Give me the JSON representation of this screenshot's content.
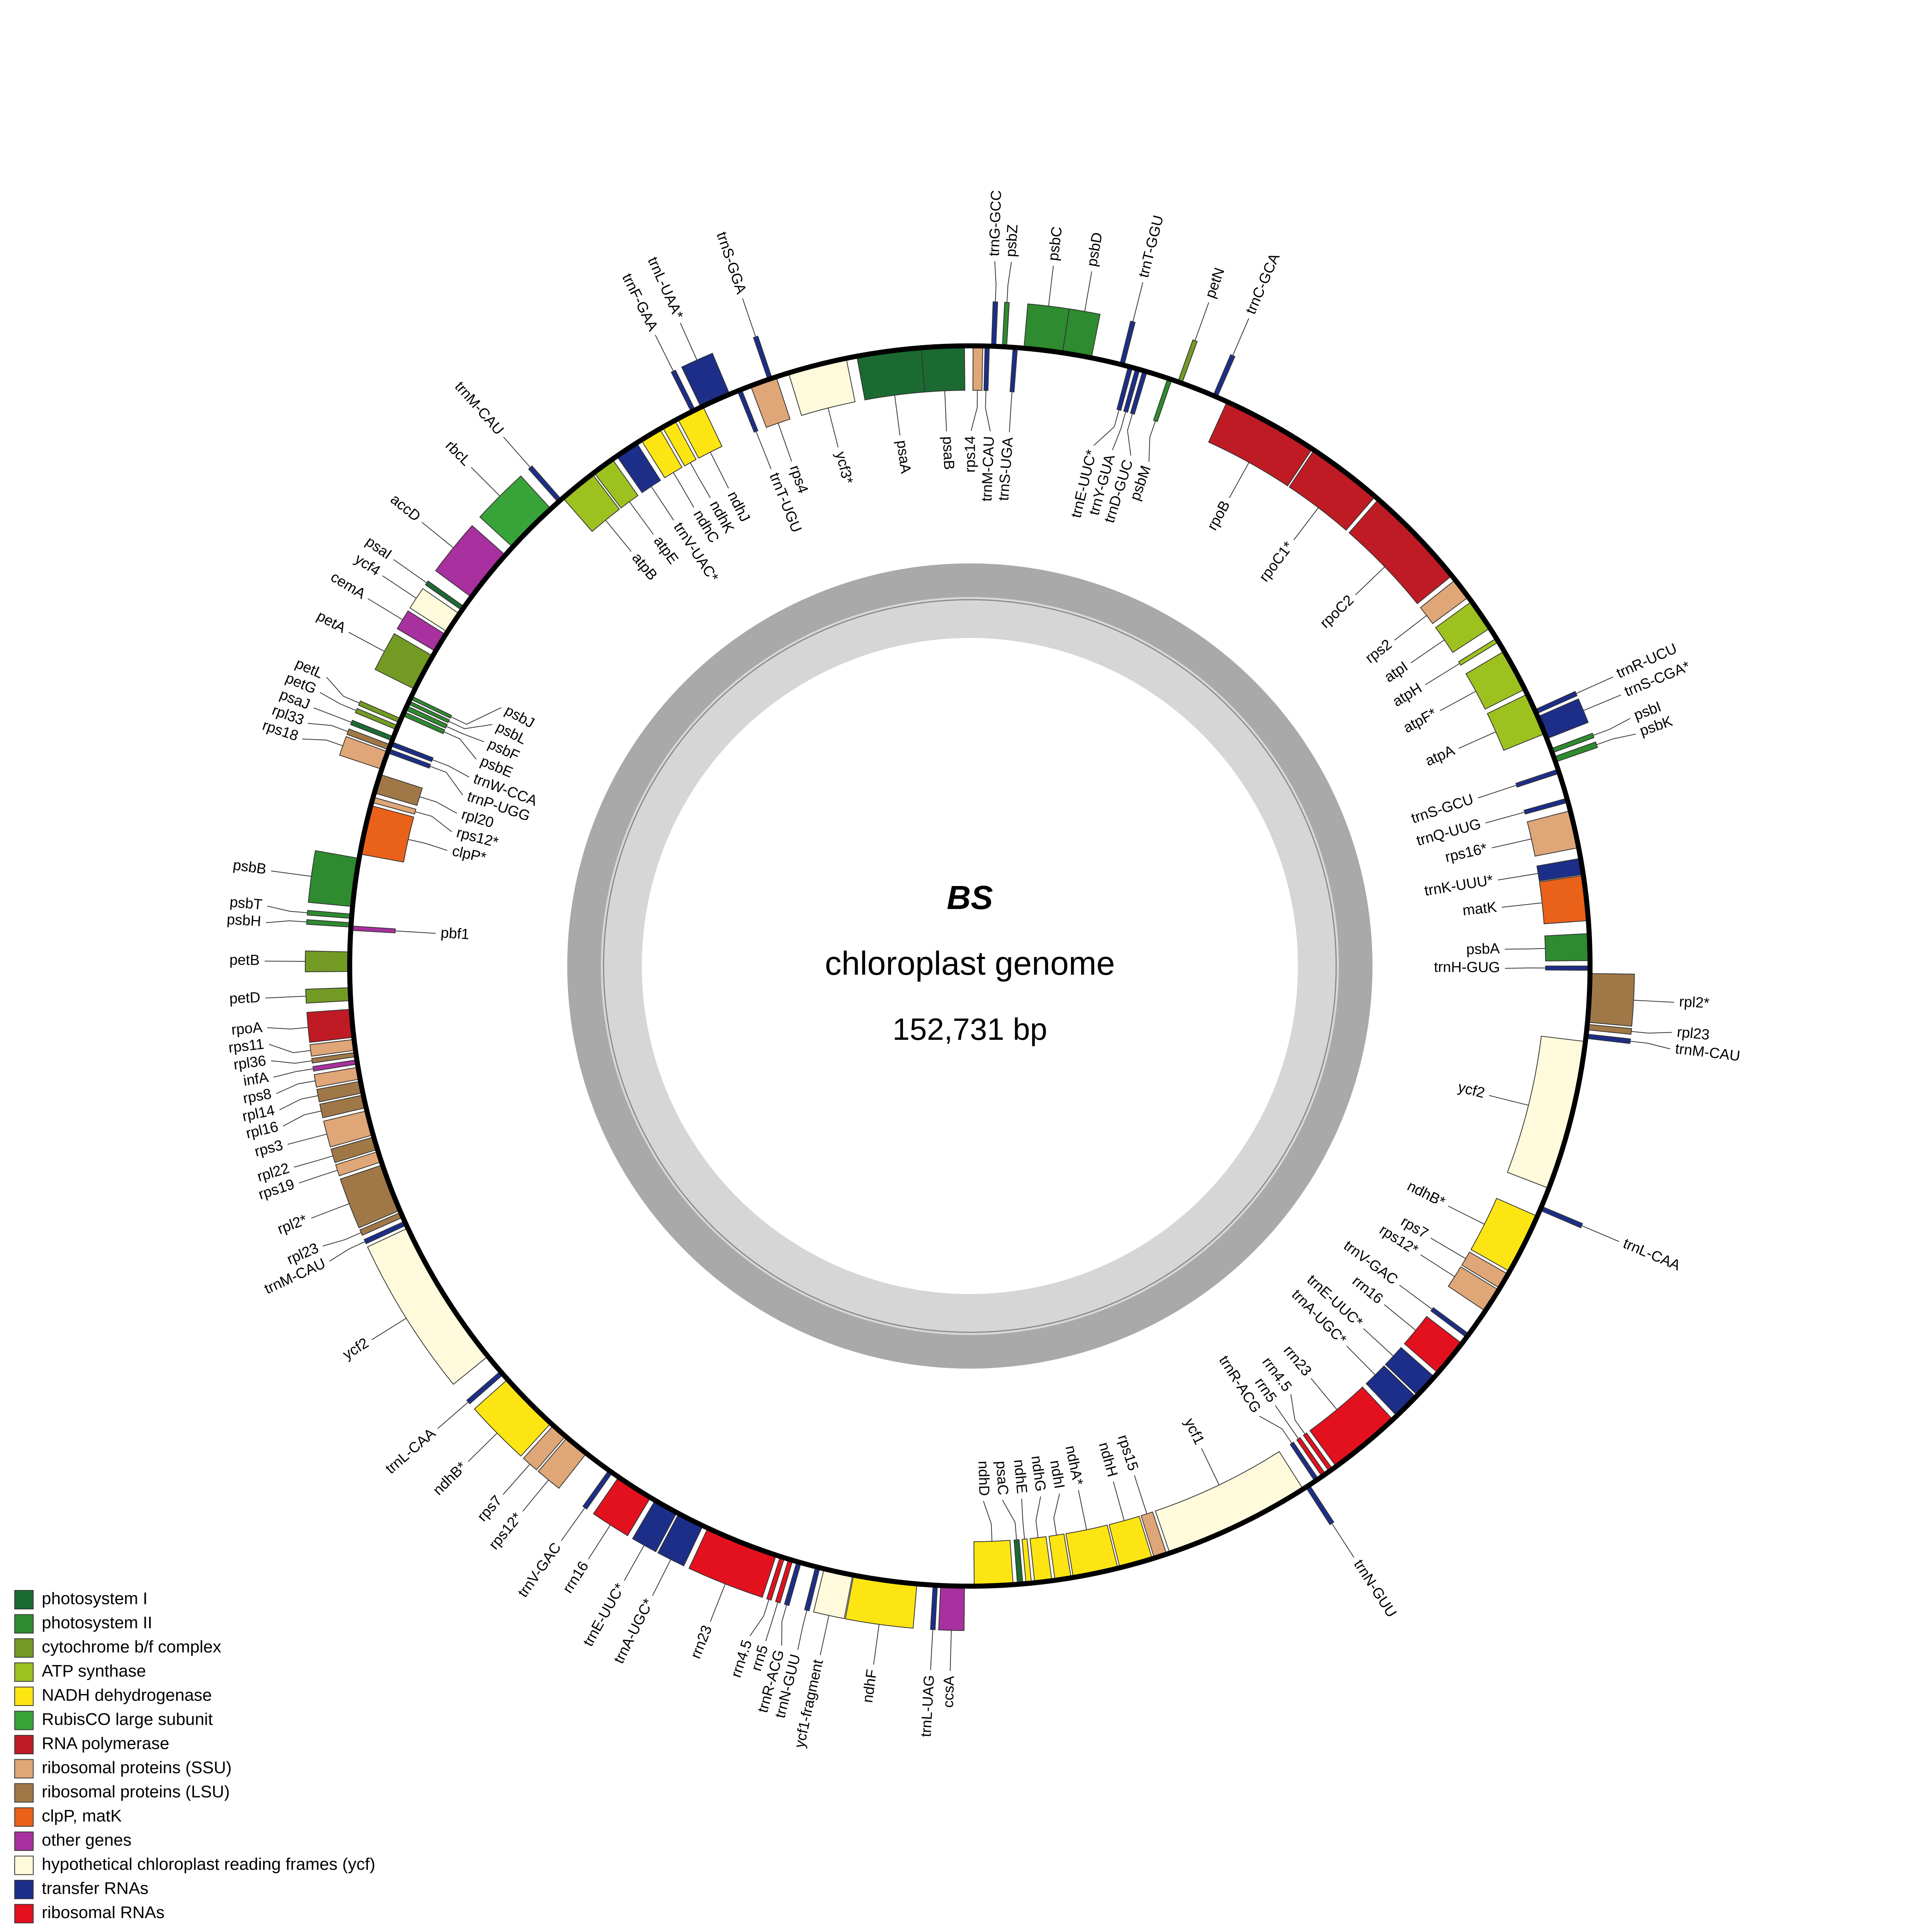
{
  "title": "BS",
  "subtitle": "chloroplast genome",
  "size": {
    "value": 152731,
    "label": "152,731 bp"
  },
  "legend": [
    {
      "label": "photosystem I",
      "color": "#1b6a32"
    },
    {
      "label": "photosystem II",
      "color": "#2e8b2f"
    },
    {
      "label": "cytochrome b/f complex",
      "color": "#739b24"
    },
    {
      "label": "ATP synthase",
      "color": "#9dc11f"
    },
    {
      "label": "NADH dehydrogenase",
      "color": "#fde513"
    },
    {
      "label": "RubisCO large subunit",
      "color": "#38a339"
    },
    {
      "label": "RNA polymerase",
      "color": "#bf1b24"
    },
    {
      "label": "ribosomal proteins (SSU)",
      "color": "#dfa677"
    },
    {
      "label": "ribosomal proteins (LSU)",
      "color": "#a07848"
    },
    {
      "label": "clpP, matK",
      "color": "#ea6119"
    },
    {
      "label": "other genes",
      "color": "#a8309f"
    },
    {
      "label": "hypothetical chloroplast reading frames (ycf)",
      "color": "#fefadb"
    },
    {
      "label": "transfer RNAs",
      "color": "#1c2e88"
    },
    {
      "label": "ribosomal RNAs",
      "color": "#e3101e"
    }
  ],
  "genes": [
    {
      "label": "rps14",
      "start": 127,
      "end": 509,
      "strand": "+",
      "color": "#dfa677"
    },
    {
      "label": "trnM-CAU",
      "start": 594,
      "end": 764,
      "strand": "+",
      "color": "#1c2e88"
    },
    {
      "label": "trnG-GCC",
      "start": 849,
      "end": 1018,
      "strand": "-",
      "color": "#1c2e88"
    },
    {
      "label": "psbZ",
      "start": 1273,
      "end": 1442,
      "strand": "-",
      "color": "#2e8b2f"
    },
    {
      "label": "trnS-UGA",
      "start": 1697,
      "end": 1867,
      "strand": "+",
      "color": "#1c2e88"
    },
    {
      "label": "psbC",
      "start": 2121,
      "end": 3649,
      "strand": "-",
      "color": "#2e8b2f"
    },
    {
      "label": "psbD",
      "start": 3649,
      "end": 4794,
      "strand": "-",
      "color": "#2e8b2f"
    },
    {
      "label": "trnT-GGU",
      "start": 5940,
      "end": 6109,
      "strand": "-",
      "color": "#1c2e88"
    },
    {
      "label": "trnE-UUC*",
      "start": 6279,
      "end": 6449,
      "strand": "+",
      "color": "#1c2e88"
    },
    {
      "label": "trnY-GUA",
      "start": 6576,
      "end": 6746,
      "strand": "+",
      "color": "#1c2e88"
    },
    {
      "label": "trnD-GUC",
      "start": 6873,
      "end": 7043,
      "strand": "+",
      "color": "#1c2e88"
    },
    {
      "label": "psbM",
      "start": 7891,
      "end": 8061,
      "strand": "+",
      "color": "#2e8b2f"
    },
    {
      "label": "petN",
      "start": 8315,
      "end": 8485,
      "strand": "-",
      "color": "#739b24"
    },
    {
      "label": "trnC-GCA",
      "start": 9800,
      "end": 9970,
      "strand": "-",
      "color": "#1c2e88"
    },
    {
      "label": "rpoB",
      "start": 10394,
      "end": 14212,
      "strand": "+",
      "color": "#bf1b24"
    },
    {
      "label": "rpoC1*",
      "start": 14297,
      "end": 17310,
      "strand": "+",
      "color": "#bf1b24"
    },
    {
      "label": "rpoC2",
      "start": 17479,
      "end": 21637,
      "strand": "+",
      "color": "#bf1b24"
    },
    {
      "label": "rps2",
      "start": 21849,
      "end": 22697,
      "strand": "+",
      "color": "#dfa677"
    },
    {
      "label": "atpI",
      "start": 22910,
      "end": 24182,
      "strand": "+",
      "color": "#9dc11f"
    },
    {
      "label": "atpH",
      "start": 24649,
      "end": 24819,
      "strand": "+",
      "color": "#9dc11f"
    },
    {
      "label": "atpF*",
      "start": 25243,
      "end": 26940,
      "strand": "+",
      "color": "#9dc11f"
    },
    {
      "label": "atpA",
      "start": 27152,
      "end": 28849,
      "strand": "+",
      "color": "#9dc11f"
    },
    {
      "label": "trnR-UCU",
      "start": 27831,
      "end": 28001,
      "strand": "-",
      "color": "#1c2e88"
    },
    {
      "label": "trnS-CGA*",
      "start": 28128,
      "end": 29061,
      "strand": "-",
      "color": "#1c2e88"
    },
    {
      "label": "psbI",
      "start": 29485,
      "end": 29655,
      "strand": "-",
      "color": "#2e8b2f"
    },
    {
      "label": "psbK",
      "start": 29825,
      "end": 30037,
      "strand": "-",
      "color": "#2e8b2f"
    },
    {
      "label": "trnS-GCU",
      "start": 30334,
      "end": 30504,
      "strand": "+",
      "color": "#1c2e88"
    },
    {
      "label": "trnQ-UUG",
      "start": 31522,
      "end": 31692,
      "strand": "+",
      "color": "#1c2e88"
    },
    {
      "label": "rps16*",
      "start": 32031,
      "end": 33516,
      "strand": "+",
      "color": "#dfa677"
    },
    {
      "label": "trnK-UUU*",
      "start": 33940,
      "end": 34576,
      "strand": "+",
      "color": "#1c2e88"
    },
    {
      "label": "matK",
      "start": 34619,
      "end": 36401,
      "strand": "+",
      "color": "#ea6119"
    },
    {
      "label": "psbA",
      "start": 36910,
      "end": 37970,
      "strand": "+",
      "color": "#2e8b2f"
    },
    {
      "label": "trnH-GUG",
      "start": 38183,
      "end": 38352,
      "strand": "+",
      "color": "#1c2e88"
    },
    {
      "label": "rpl2*",
      "start": 38479,
      "end": 40389,
      "strand": "-",
      "color": "#a07848"
    },
    {
      "label": "rpl23",
      "start": 40474,
      "end": 40686,
      "strand": "-",
      "color": "#a07848"
    },
    {
      "label": "trnM-CAU",
      "start": 40855,
      "end": 41025,
      "strand": "-",
      "color": "#1c2e88"
    },
    {
      "label": "ycf2",
      "start": 41152,
      "end": 47092,
      "strand": "+",
      "color": "#fefadb"
    },
    {
      "label": "trnL-CAA",
      "start": 47855,
      "end": 48025,
      "strand": "-",
      "color": "#1c2e88"
    },
    {
      "label": "ndhB*",
      "start": 48280,
      "end": 50698,
      "strand": "+",
      "color": "#fde513"
    },
    {
      "label": "rps7",
      "start": 50825,
      "end": 51462,
      "strand": "+",
      "color": "#dfa677"
    },
    {
      "label": "rps12*",
      "start": 51546,
      "end": 52523,
      "strand": "+",
      "color": "#dfa677"
    },
    {
      "label": "trnV-GAC",
      "start": 53625,
      "end": 53795,
      "strand": "+",
      "color": "#1c2e88"
    },
    {
      "label": "rrn16",
      "start": 54092,
      "end": 55577,
      "strand": "+",
      "color": "#e3101e"
    },
    {
      "label": "trnE-UUC*",
      "start": 55789,
      "end": 56765,
      "strand": "+",
      "color": "#1c2e88"
    },
    {
      "label": "trnA-UGC*",
      "start": 56850,
      "end": 57910,
      "strand": "+",
      "color": "#1c2e88"
    },
    {
      "label": "rrn23",
      "start": 58122,
      "end": 61007,
      "strand": "+",
      "color": "#e3101e"
    },
    {
      "label": "rrn4.5",
      "start": 61177,
      "end": 61346,
      "strand": "+",
      "color": "#e3101e"
    },
    {
      "label": "rrn5",
      "start": 61516,
      "end": 61686,
      "strand": "+",
      "color": "#e3101e"
    },
    {
      "label": "trnR-ACG",
      "start": 61856,
      "end": 62025,
      "strand": "+",
      "color": "#1c2e88"
    },
    {
      "label": "trnN-GUU",
      "start": 62280,
      "end": 62450,
      "strand": "-",
      "color": "#1c2e88"
    },
    {
      "label": "ycf1",
      "start": 62577,
      "end": 68389,
      "strand": "+",
      "color": "#fefadb"
    },
    {
      "label": "rps15",
      "start": 68516,
      "end": 69025,
      "strand": "+",
      "color": "#dfa677"
    },
    {
      "label": "ndhH",
      "start": 69110,
      "end": 70426,
      "strand": "+",
      "color": "#fde513"
    },
    {
      "label": "ndhA*",
      "start": 70510,
      "end": 72292,
      "strand": "+",
      "color": "#fde513"
    },
    {
      "label": "ndhI",
      "start": 72377,
      "end": 73014,
      "strand": "+",
      "color": "#fde513"
    },
    {
      "label": "ndhG",
      "start": 73141,
      "end": 73820,
      "strand": "+",
      "color": "#fde513"
    },
    {
      "label": "ndhE",
      "start": 73947,
      "end": 74159,
      "strand": "+",
      "color": "#fde513"
    },
    {
      "label": "psaC",
      "start": 74286,
      "end": 74498,
      "strand": "+",
      "color": "#1b6a32"
    },
    {
      "label": "ndhD",
      "start": 74668,
      "end": 76196,
      "strand": "+",
      "color": "#fde513"
    },
    {
      "label": "ccsA",
      "start": 76577,
      "end": 77510,
      "strand": "-",
      "color": "#a8309f"
    },
    {
      "label": "trnL-UAG",
      "start": 77638,
      "end": 77807,
      "strand": "-",
      "color": "#1c2e88"
    },
    {
      "label": "ndhF",
      "start": 78444,
      "end": 80947,
      "strand": "-",
      "color": "#fde513"
    },
    {
      "label": "ycf1-fragment",
      "start": 80989,
      "end": 82135,
      "strand": "-",
      "color": "#fefadb"
    },
    {
      "label": "trnN-GUU",
      "start": 82305,
      "end": 82475,
      "strand": "-",
      "color": "#1c2e88"
    },
    {
      "label": "trnR-ACG",
      "start": 83068,
      "end": 83238,
      "strand": "-",
      "color": "#1c2e88"
    },
    {
      "label": "rrn5",
      "start": 83408,
      "end": 83577,
      "strand": "-",
      "color": "#e3101e"
    },
    {
      "label": "rrn4.5",
      "start": 83747,
      "end": 83917,
      "strand": "-",
      "color": "#e3101e"
    },
    {
      "label": "rrn23",
      "start": 84086,
      "end": 86971,
      "strand": "-",
      "color": "#e3101e"
    },
    {
      "label": "trnA-UGC*",
      "start": 87183,
      "end": 88244,
      "strand": "-",
      "color": "#1c2e88"
    },
    {
      "label": "trnE-UUC*",
      "start": 88329,
      "end": 89305,
      "strand": "-",
      "color": "#1c2e88"
    },
    {
      "label": "rrn16",
      "start": 89517,
      "end": 91002,
      "strand": "-",
      "color": "#e3101e"
    },
    {
      "label": "trnV-GAC",
      "start": 91302,
      "end": 91472,
      "strand": "-",
      "color": "#1c2e88"
    },
    {
      "label": "rps12*",
      "start": 92571,
      "end": 93547,
      "strand": "-",
      "color": "#dfa677"
    },
    {
      "label": "rps7",
      "start": 93632,
      "end": 94268,
      "strand": "-",
      "color": "#dfa677"
    },
    {
      "label": "ndhB*",
      "start": 94396,
      "end": 96814,
      "strand": "-",
      "color": "#fde513"
    },
    {
      "label": "trnL-CAA",
      "start": 97069,
      "end": 97239,
      "strand": "-",
      "color": "#1c2e88"
    },
    {
      "label": "ycf2",
      "start": 98002,
      "end": 103941,
      "strand": "-",
      "color": "#fefadb"
    },
    {
      "label": "trnM-CAU",
      "start": 104068,
      "end": 104238,
      "strand": "-",
      "color": "#1c2e88"
    },
    {
      "label": "rpl23",
      "start": 104408,
      "end": 104620,
      "strand": "-",
      "color": "#a07848"
    },
    {
      "label": "rpl2*",
      "start": 104705,
      "end": 106614,
      "strand": "-",
      "color": "#a07848"
    },
    {
      "label": "rps19",
      "start": 106741,
      "end": 107166,
      "strand": "-",
      "color": "#dfa677"
    },
    {
      "label": "rpl22",
      "start": 107250,
      "end": 107760,
      "strand": "-",
      "color": "#a07848"
    },
    {
      "label": "rps3",
      "start": 107844,
      "end": 108820,
      "strand": "-",
      "color": "#dfa677"
    },
    {
      "label": "rpl16",
      "start": 108947,
      "end": 109457,
      "strand": "-",
      "color": "#a07848"
    },
    {
      "label": "rpl14",
      "start": 109541,
      "end": 110008,
      "strand": "-",
      "color": "#a07848"
    },
    {
      "label": "rps8",
      "start": 110093,
      "end": 110560,
      "strand": "-",
      "color": "#dfa677"
    },
    {
      "label": "infA",
      "start": 110687,
      "end": 110857,
      "strand": "-",
      "color": "#a8309f"
    },
    {
      "label": "rpl36",
      "start": 110984,
      "end": 111154,
      "strand": "-",
      "color": "#a07848"
    },
    {
      "label": "rps11",
      "start": 111238,
      "end": 111663,
      "strand": "-",
      "color": "#dfa677"
    },
    {
      "label": "rpoA",
      "start": 111747,
      "end": 112851,
      "strand": "-",
      "color": "#bf1b24"
    },
    {
      "label": "petD",
      "start": 113190,
      "end": 113699,
      "strand": "-",
      "color": "#739b24"
    },
    {
      "label": "petB",
      "start": 114335,
      "end": 115099,
      "strand": "-",
      "color": "#739b24"
    },
    {
      "label": "pbf1",
      "start": 115948,
      "end": 116117,
      "strand": "+",
      "color": "#a8309f"
    },
    {
      "label": "psbH",
      "start": 116075,
      "end": 116245,
      "strand": "-",
      "color": "#2e8b2f"
    },
    {
      "label": "psbT",
      "start": 116415,
      "end": 116584,
      "strand": "-",
      "color": "#2e8b2f"
    },
    {
      "label": "psbB",
      "start": 116881,
      "end": 118790,
      "strand": "-",
      "color": "#2e8b2f"
    },
    {
      "label": "clpP*",
      "start": 118960,
      "end": 120911,
      "strand": "+",
      "color": "#ea6119"
    },
    {
      "label": "rps12*",
      "start": 121039,
      "end": 121251,
      "strand": "+",
      "color": "#dfa677"
    },
    {
      "label": "rpl20",
      "start": 121420,
      "end": 122184,
      "strand": "+",
      "color": "#a07848"
    },
    {
      "label": "rps18",
      "start": 122396,
      "end": 123117,
      "strand": "-",
      "color": "#dfa677"
    },
    {
      "label": "rpl33",
      "start": 123202,
      "end": 123414,
      "strand": "-",
      "color": "#a07848"
    },
    {
      "label": "trnP-UGG",
      "start": 123075,
      "end": 123245,
      "strand": "+",
      "color": "#1c2e88"
    },
    {
      "label": "trnW-CCA",
      "start": 123372,
      "end": 123542,
      "strand": "+",
      "color": "#1c2e88"
    },
    {
      "label": "psaJ",
      "start": 123584,
      "end": 123754,
      "strand": "-",
      "color": "#1b6a32"
    },
    {
      "label": "petG",
      "start": 124051,
      "end": 124221,
      "strand": "-",
      "color": "#739b24"
    },
    {
      "label": "petL",
      "start": 124348,
      "end": 124518,
      "strand": "-",
      "color": "#739b24"
    },
    {
      "label": "psbE",
      "start": 124646,
      "end": 124816,
      "strand": "+",
      "color": "#2e8b2f"
    },
    {
      "label": "psbF",
      "start": 124900,
      "end": 125070,
      "strand": "+",
      "color": "#2e8b2f"
    },
    {
      "label": "psbL",
      "start": 125155,
      "end": 125283,
      "strand": "+",
      "color": "#2e8b2f"
    },
    {
      "label": "psbJ",
      "start": 125367,
      "end": 125494,
      "strand": "+",
      "color": "#2e8b2f"
    },
    {
      "label": "petA",
      "start": 125790,
      "end": 127275,
      "strand": "-",
      "color": "#739b24"
    },
    {
      "label": "cemA",
      "start": 127487,
      "end": 128251,
      "strand": "-",
      "color": "#a8309f"
    },
    {
      "label": "ycf4",
      "start": 128378,
      "end": 129227,
      "strand": "-",
      "color": "#fefadb"
    },
    {
      "label": "psaI",
      "start": 129396,
      "end": 129566,
      "strand": "-",
      "color": "#1b6a32"
    },
    {
      "label": "accD",
      "start": 130033,
      "end": 132154,
      "strand": "-",
      "color": "#a8309f"
    },
    {
      "label": "rbcL",
      "start": 132578,
      "end": 134699,
      "strand": "-",
      "color": "#38a339"
    },
    {
      "label": "trnM-CAU",
      "start": 135081,
      "end": 135251,
      "strand": "-",
      "color": "#1c2e88"
    },
    {
      "label": "atpB",
      "start": 135336,
      "end": 136821,
      "strand": "+",
      "color": "#9dc11f"
    },
    {
      "label": "atpE",
      "start": 136906,
      "end": 137797,
      "strand": "+",
      "color": "#9dc11f"
    },
    {
      "label": "trnV-UAC*",
      "start": 138009,
      "end": 138943,
      "strand": "+",
      "color": "#1c2e88"
    },
    {
      "label": "ndhC",
      "start": 139154,
      "end": 140003,
      "strand": "+",
      "color": "#fde513"
    },
    {
      "label": "ndhK",
      "start": 140130,
      "end": 140682,
      "strand": "+",
      "color": "#fde513"
    },
    {
      "label": "ndhJ",
      "start": 140809,
      "end": 141912,
      "strand": "+",
      "color": "#fde513"
    },
    {
      "label": "trnF-GAA",
      "start": 141405,
      "end": 141575,
      "strand": "-",
      "color": "#1c2e88"
    },
    {
      "label": "trnL-UAA*",
      "start": 141830,
      "end": 143061,
      "strand": "-",
      "color": "#1c2e88"
    },
    {
      "label": "trnT-UGU",
      "start": 143397,
      "end": 143567,
      "strand": "+",
      "color": "#1c2e88"
    },
    {
      "label": "rps4",
      "start": 143948,
      "end": 145009,
      "strand": "+",
      "color": "#dfa677"
    },
    {
      "label": "trnS-GGA",
      "start": 144669,
      "end": 144839,
      "strand": "-",
      "color": "#1c2e88"
    },
    {
      "label": "ycf3*",
      "start": 145518,
      "end": 147851,
      "strand": "+",
      "color": "#fefadb"
    },
    {
      "label": "psaA",
      "start": 148275,
      "end": 150821,
      "strand": "+",
      "color": "#1b6a32"
    },
    {
      "label": "psaB",
      "start": 150821,
      "end": 152520,
      "strand": "+",
      "color": "#1b6a32"
    }
  ]
}
